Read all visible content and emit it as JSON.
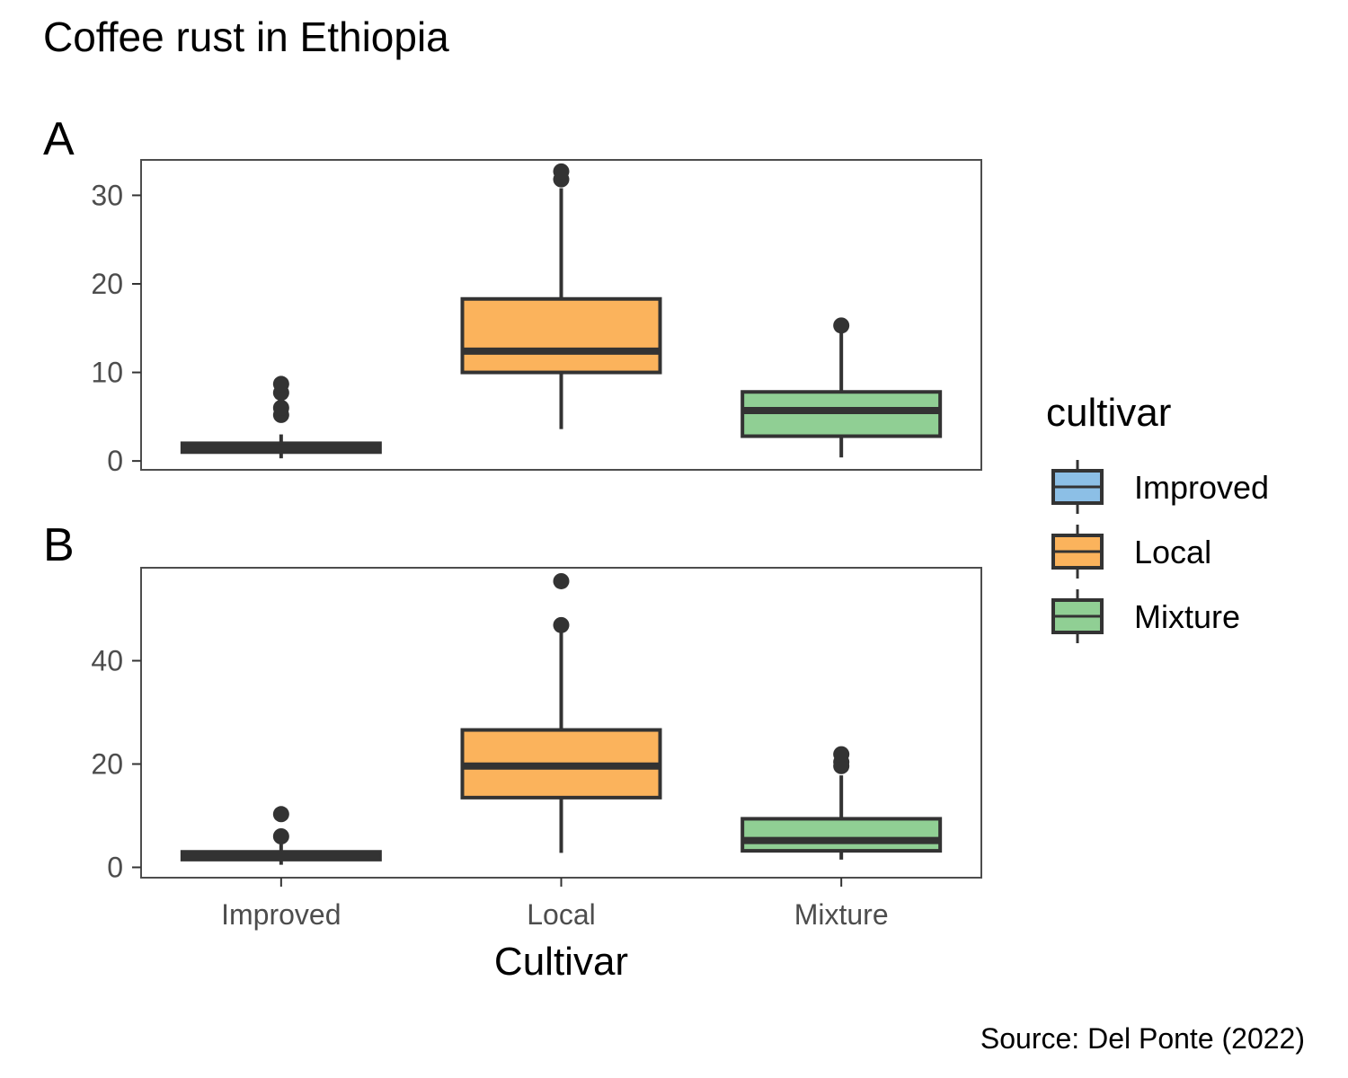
{
  "title": "Coffee rust in Ethiopia",
  "caption": "Source: Del Ponte (2022)",
  "colors": {
    "Improved": "#8cbfe6",
    "Local": "#fbb35c",
    "Mixture": "#90cf94",
    "stroke": "#333333",
    "panel_border": "#4d4d4d"
  },
  "chart_data": [
    {
      "type": "box",
      "panel": "A",
      "categories": [
        "Improved",
        "Local",
        "Mixture"
      ],
      "ylim": [
        -1,
        34
      ],
      "yticks": [
        0,
        10,
        20,
        30
      ],
      "grid": false,
      "boxes": [
        {
          "category": "Improved",
          "min": 0.3,
          "q1": 1.0,
          "median": 1.5,
          "q3": 2.0,
          "max": 3.0,
          "outliers": [
            5.2,
            6.0,
            7.7,
            8.7
          ]
        },
        {
          "category": "Local",
          "min": 3.6,
          "q1": 10.0,
          "median": 12.4,
          "q3": 18.3,
          "max": 30.8,
          "outliers": [
            31.8,
            32.7
          ]
        },
        {
          "category": "Mixture",
          "min": 0.4,
          "q1": 2.8,
          "median": 5.7,
          "q3": 7.8,
          "max": 14.8,
          "outliers": [
            15.3
          ]
        }
      ]
    },
    {
      "type": "box",
      "panel": "B",
      "xlabel": "Cultivar",
      "categories": [
        "Improved",
        "Local",
        "Mixture"
      ],
      "ylim": [
        -2,
        58
      ],
      "yticks": [
        0,
        20,
        40
      ],
      "grid": false,
      "boxes": [
        {
          "category": "Improved",
          "min": 0.5,
          "q1": 1.5,
          "median": 2.0,
          "q3": 3.0,
          "max": 4.5,
          "outliers": [
            6.0,
            10.3
          ]
        },
        {
          "category": "Local",
          "min": 2.8,
          "q1": 13.5,
          "median": 19.6,
          "q3": 26.6,
          "max": 45.5,
          "outliers": [
            46.9,
            55.4
          ]
        },
        {
          "category": "Mixture",
          "min": 1.5,
          "q1": 3.2,
          "median": 5.2,
          "q3": 9.4,
          "max": 17.8,
          "outliers": [
            19.6,
            20.4,
            21.9
          ]
        }
      ]
    }
  ],
  "legend": {
    "title": "cultivar",
    "items": [
      "Improved",
      "Local",
      "Mixture"
    ]
  }
}
